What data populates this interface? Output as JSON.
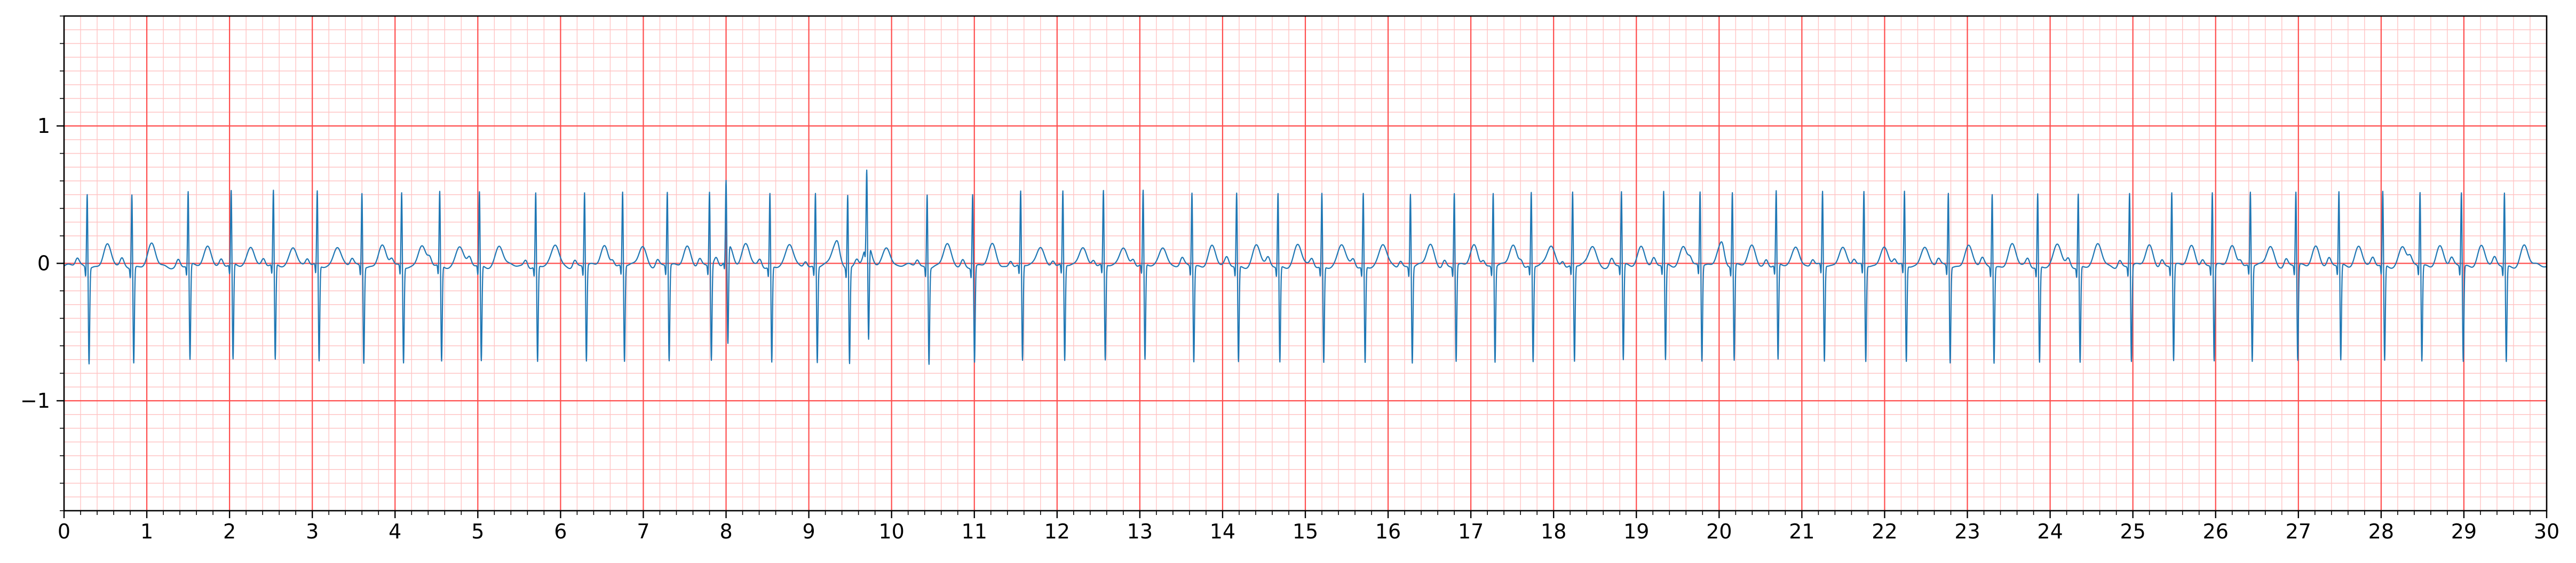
{
  "chart_data": {
    "type": "line",
    "title": "",
    "xlabel": "",
    "ylabel": "",
    "xlim": [
      0,
      30
    ],
    "ylim": [
      -1.8,
      1.8
    ],
    "x_ticks": [
      0,
      1,
      2,
      3,
      4,
      5,
      6,
      7,
      8,
      9,
      10,
      11,
      12,
      13,
      14,
      15,
      16,
      17,
      18,
      19,
      20,
      21,
      22,
      23,
      24,
      25,
      26,
      27,
      28,
      29,
      30
    ],
    "x_tick_labels": [
      "0",
      "1",
      "2",
      "3",
      "4",
      "5",
      "6",
      "7",
      "8",
      "9",
      "10",
      "11",
      "12",
      "13",
      "14",
      "15",
      "16",
      "17",
      "18",
      "19",
      "20",
      "21",
      "22",
      "23",
      "24",
      "25",
      "26",
      "27",
      "28",
      "29",
      "30"
    ],
    "y_ticks": [
      -1,
      0,
      1
    ],
    "y_tick_labels": [
      "−1",
      "0",
      "1"
    ],
    "grid": {
      "major": true,
      "minor": true,
      "x_major_step": 1,
      "x_minor_step": 0.2,
      "y_major_step": 1,
      "y_minor_step": 0.1
    },
    "colors": {
      "major_grid": "#ff4d4d",
      "minor_grid": "#ffc4c4",
      "trace": "#1f77b4",
      "axis": "#000000"
    },
    "series": [
      {
        "kind": "ecg-trace",
        "sampling_note": "beat onset times in seconds; QRS deflection approx +0.55 / -0.70, T-wave approx +0.15",
        "beats_s": [
          0.28,
          0.82,
          1.5,
          2.02,
          2.53,
          3.06,
          3.6,
          4.08,
          4.54,
          5.02,
          5.7,
          6.29,
          6.75,
          7.29,
          7.8,
          8.0,
          8.53,
          9.08,
          9.47,
          9.7,
          10.43,
          10.98,
          11.56,
          12.07,
          12.56,
          13.04,
          13.63,
          14.17,
          14.67,
          15.2,
          15.7,
          16.27,
          16.8,
          17.27,
          17.73,
          18.23,
          18.82,
          19.33,
          19.77,
          20.16,
          20.69,
          21.25,
          21.75,
          22.24,
          22.77,
          23.3,
          23.85,
          24.34,
          24.96,
          25.47,
          25.96,
          26.42,
          26.97,
          27.49,
          28.02,
          28.47,
          28.97,
          29.49
        ],
        "r_peak_mv": 0.55,
        "s_trough_mv": -0.7,
        "t_wave_mv": 0.15
      }
    ]
  }
}
